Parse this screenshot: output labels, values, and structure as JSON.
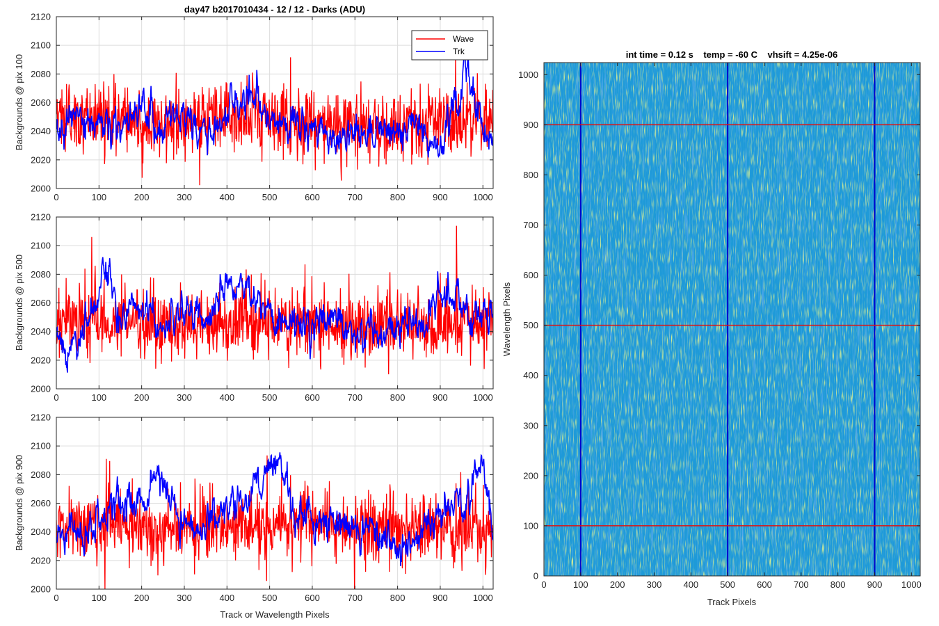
{
  "chart_data": [
    {
      "type": "line",
      "panel": "top-left",
      "title": "day47 b2017010434 - 12 / 12 - Darks (ADU)",
      "xlabel": "",
      "ylabel": "Backgrounds @ pix 100",
      "xlim": [
        0,
        1024
      ],
      "ylim": [
        2000,
        2120
      ],
      "xticks": [
        0,
        100,
        200,
        300,
        400,
        500,
        600,
        700,
        800,
        900,
        1000
      ],
      "yticks": [
        2000,
        2020,
        2040,
        2060,
        2080,
        2100,
        2120
      ],
      "grid": true,
      "legend": {
        "placement": "top-right",
        "entries": [
          "Wave",
          "Trk"
        ]
      },
      "series": [
        {
          "name": "Wave",
          "color": "#ff0000",
          "approx_mean": 2046,
          "noise_std": 12,
          "x": [
            0,
            100,
            200,
            300,
            400,
            500,
            600,
            700,
            800,
            900,
            1000,
            1024
          ],
          "values": [
            2048,
            2052,
            2045,
            2046,
            2050,
            2047,
            2046,
            2044,
            2045,
            2045,
            2047,
            2050
          ]
        },
        {
          "name": "Trk",
          "color": "#0000ff",
          "approx_mean": 2042,
          "noise_std": 6,
          "x": [
            0,
            50,
            100,
            150,
            200,
            250,
            300,
            350,
            400,
            450,
            500,
            550,
            600,
            650,
            700,
            750,
            800,
            850,
            900,
            950,
            965,
            980,
            1000,
            1024
          ],
          "values": [
            2038,
            2048,
            2045,
            2045,
            2060,
            2040,
            2047,
            2038,
            2052,
            2066,
            2050,
            2046,
            2046,
            2036,
            2037,
            2038,
            2036,
            2042,
            2030,
            2070,
            2092,
            2062,
            2040,
            2035
          ]
        }
      ]
    },
    {
      "type": "line",
      "panel": "middle-left",
      "title": "",
      "xlabel": "",
      "ylabel": "Backgrounds @ pix 500",
      "xlim": [
        0,
        1024
      ],
      "ylim": [
        2000,
        2120
      ],
      "xticks": [
        0,
        100,
        200,
        300,
        400,
        500,
        600,
        700,
        800,
        900,
        1000
      ],
      "yticks": [
        2000,
        2020,
        2040,
        2060,
        2080,
        2100,
        2120
      ],
      "grid": true,
      "series": [
        {
          "name": "Wave",
          "color": "#ff0000",
          "approx_mean": 2047,
          "noise_std": 12,
          "x": [
            0,
            100,
            200,
            300,
            400,
            500,
            600,
            700,
            800,
            900,
            1000,
            1024
          ],
          "values": [
            2045,
            2048,
            2046,
            2044,
            2047,
            2046,
            2048,
            2043,
            2045,
            2046,
            2048,
            2050
          ]
        },
        {
          "name": "Trk",
          "color": "#0000ff",
          "approx_mean": 2048,
          "noise_std": 6,
          "x": [
            0,
            30,
            80,
            110,
            150,
            200,
            250,
            300,
            350,
            400,
            440,
            480,
            520,
            560,
            600,
            650,
            700,
            750,
            800,
            870,
            900,
            950,
            1000,
            1024
          ],
          "values": [
            2035,
            2025,
            2050,
            2078,
            2055,
            2062,
            2040,
            2055,
            2050,
            2072,
            2075,
            2060,
            2050,
            2052,
            2045,
            2048,
            2042,
            2040,
            2040,
            2045,
            2070,
            2058,
            2055,
            2060
          ]
        }
      ]
    },
    {
      "type": "line",
      "panel": "bottom-left",
      "title": "",
      "xlabel": "Track or Wavelength Pixels",
      "ylabel": "Backgrounds @ pix 900",
      "xlim": [
        0,
        1024
      ],
      "ylim": [
        2000,
        2120
      ],
      "xticks": [
        0,
        100,
        200,
        300,
        400,
        500,
        600,
        700,
        800,
        900,
        1000
      ],
      "yticks": [
        2000,
        2020,
        2040,
        2060,
        2080,
        2100,
        2120
      ],
      "grid": true,
      "series": [
        {
          "name": "Wave",
          "color": "#ff0000",
          "approx_mean": 2044,
          "noise_std": 12,
          "x": [
            0,
            100,
            200,
            300,
            400,
            500,
            600,
            700,
            800,
            900,
            1000,
            1024
          ],
          "values": [
            2045,
            2046,
            2044,
            2042,
            2045,
            2044,
            2046,
            2043,
            2042,
            2045,
            2044,
            2046
          ]
        },
        {
          "name": "Trk",
          "color": "#0000ff",
          "approx_mean": 2050,
          "noise_std": 6,
          "x": [
            0,
            40,
            100,
            150,
            200,
            240,
            280,
            330,
            380,
            450,
            490,
            520,
            560,
            610,
            660,
            700,
            750,
            790,
            820,
            870,
            920,
            960,
            990,
            1000,
            1024
          ],
          "values": [
            2035,
            2042,
            2045,
            2065,
            2060,
            2080,
            2048,
            2040,
            2055,
            2065,
            2080,
            2095,
            2050,
            2050,
            2045,
            2048,
            2040,
            2030,
            2025,
            2045,
            2058,
            2062,
            2080,
            2090,
            2035
          ]
        }
      ]
    },
    {
      "type": "heatmap",
      "panel": "right",
      "title": "int time = 0.12 s    temp = -60 C    vhsift = 4.25e-06",
      "xlabel": "Track Pixels",
      "ylabel": "Wavelength Pixels",
      "xlim": [
        0,
        1024
      ],
      "ylim": [
        0,
        1024
      ],
      "xticks": [
        0,
        100,
        200,
        300,
        400,
        500,
        600,
        700,
        800,
        900,
        1000
      ],
      "yticks": [
        0,
        100,
        200,
        300,
        400,
        500,
        600,
        700,
        800,
        900,
        1000
      ],
      "colormap": {
        "low": "#1a5fd0",
        "mid": "#1e9ad8",
        "high": "#9ccf4a"
      },
      "vertical_markers": {
        "x": [
          100,
          500,
          900
        ],
        "color": "#0000cc"
      },
      "horizontal_markers": {
        "y": [
          100,
          500,
          900
        ],
        "color": "#e01010"
      }
    }
  ]
}
